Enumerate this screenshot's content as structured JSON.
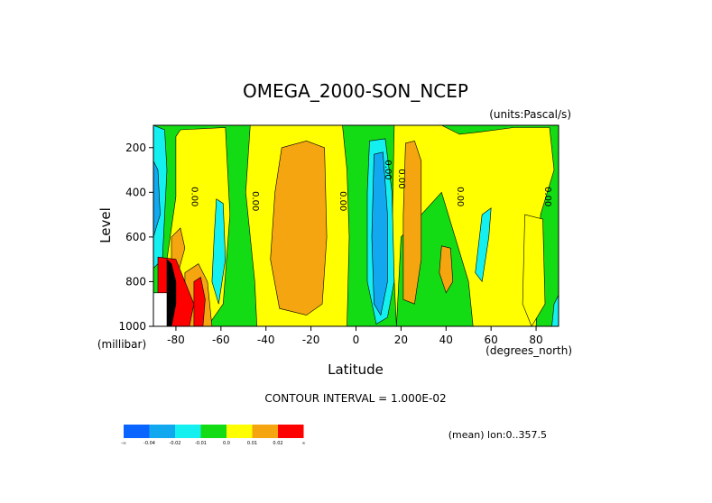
{
  "chart_data": {
    "type": "heatmap",
    "title": "OMEGA_2000-SON_NCEP",
    "units_label": "(units:Pascal/s)",
    "xlabel": "Latitude",
    "ylabel": "Level",
    "x_unit_label": "(degrees_north)",
    "y_unit_label": "(millibar)",
    "xlim": [
      -90,
      90
    ],
    "ylim": [
      1000,
      100
    ],
    "x_ticks": [
      -80,
      -60,
      -40,
      -20,
      0,
      20,
      40,
      60,
      80
    ],
    "y_ticks": [
      200,
      400,
      600,
      800,
      1000
    ],
    "contour_interval_text": "CONTOUR INTERVAL = 1.000E-02",
    "mean_text": "(mean) lon:0..357.5",
    "contour_labels": [
      {
        "lat": -73,
        "level": 420,
        "text": "0.00"
      },
      {
        "lat": -46,
        "level": 440,
        "text": "0.00"
      },
      {
        "lat": -7,
        "level": 440,
        "text": "0.00"
      },
      {
        "lat": 13,
        "level": 300,
        "text": "0.00"
      },
      {
        "lat": 19,
        "level": 340,
        "text": "0.00"
      },
      {
        "lat": 45,
        "level": 420,
        "text": "0.00"
      },
      {
        "lat": 84,
        "level": 420,
        "text": "0.00"
      }
    ],
    "colorbar": {
      "bins": [
        {
          "color": "#0a64ff",
          "label": "-∞"
        },
        {
          "color": "#12a8f0",
          "label": "-0.04"
        },
        {
          "color": "#14f0f0",
          "label": "-0.02"
        },
        {
          "color": "#14dc14",
          "label": "-0.01"
        },
        {
          "color": "#ffff00",
          "label": "0.0"
        },
        {
          "color": "#f5a510",
          "label": "0.01"
        },
        {
          "color": "#ff0000",
          "label": "0.02"
        }
      ],
      "end_label": "∞"
    },
    "regions": [
      {
        "color": "#14dc14",
        "poly": [
          [
            -90,
            100
          ],
          [
            90,
            100
          ],
          [
            90,
            1000
          ],
          [
            -90,
            1000
          ]
        ]
      },
      {
        "color": "#ffff00",
        "poly": [
          [
            -78,
            120
          ],
          [
            -58,
            110
          ],
          [
            -56,
            500
          ],
          [
            -59,
            900
          ],
          [
            -66,
            1000
          ],
          [
            -84,
            1000
          ],
          [
            -84,
            700
          ],
          [
            -80,
            420
          ],
          [
            -80,
            150
          ]
        ]
      },
      {
        "color": "#ffff00",
        "poly": [
          [
            -47,
            100
          ],
          [
            -6,
            100
          ],
          [
            -4,
            300
          ],
          [
            -3,
            600
          ],
          [
            -4,
            1000
          ],
          [
            -44,
            1000
          ],
          [
            -45,
            800
          ],
          [
            -49,
            400
          ]
        ]
      },
      {
        "color": "#ffff00",
        "poly": [
          [
            17,
            100
          ],
          [
            38,
            100
          ],
          [
            46,
            140
          ],
          [
            55,
            130
          ],
          [
            70,
            110
          ],
          [
            86,
            110
          ],
          [
            88,
            300
          ],
          [
            82,
            500
          ],
          [
            80,
            1000
          ],
          [
            52,
            1000
          ],
          [
            50,
            800
          ],
          [
            38,
            400
          ],
          [
            20,
            600
          ],
          [
            18,
            1000
          ],
          [
            16,
            600
          ]
        ]
      },
      {
        "color": "#ffff00",
        "poly": [
          [
            75,
            500
          ],
          [
            83,
            520
          ],
          [
            84,
            900
          ],
          [
            78,
            1000
          ],
          [
            74,
            900
          ]
        ]
      },
      {
        "color": "#f5a510",
        "poly": [
          [
            -33,
            200
          ],
          [
            -22,
            170
          ],
          [
            -14,
            200
          ],
          [
            -13,
            600
          ],
          [
            -15,
            900
          ],
          [
            -22,
            950
          ],
          [
            -34,
            920
          ],
          [
            -38,
            700
          ],
          [
            -36,
            400
          ]
        ]
      },
      {
        "color": "#f5a510",
        "poly": [
          [
            22,
            180
          ],
          [
            26,
            170
          ],
          [
            29,
            260
          ],
          [
            29,
            700
          ],
          [
            26,
            900
          ],
          [
            21,
            880
          ],
          [
            21,
            500
          ]
        ]
      },
      {
        "color": "#f5a510",
        "poly": [
          [
            38,
            640
          ],
          [
            42,
            650
          ],
          [
            43,
            800
          ],
          [
            40,
            850
          ],
          [
            37,
            760
          ]
        ]
      },
      {
        "color": "#f5a510",
        "poly": [
          [
            -82,
            600
          ],
          [
            -78,
            560
          ],
          [
            -76,
            650
          ],
          [
            -79,
            760
          ],
          [
            -82,
            720
          ]
        ]
      },
      {
        "color": "#f5a510",
        "poly": [
          [
            -76,
            760
          ],
          [
            -70,
            720
          ],
          [
            -66,
            800
          ],
          [
            -64,
            1000
          ],
          [
            -74,
            1000
          ],
          [
            -76,
            900
          ]
        ]
      },
      {
        "color": "#14f0f0",
        "poly": [
          [
            -90,
            100
          ],
          [
            -85,
            120
          ],
          [
            -84,
            300
          ],
          [
            -86,
            700
          ],
          [
            -90,
            740
          ]
        ]
      },
      {
        "color": "#14f0f0",
        "poly": [
          [
            6,
            170
          ],
          [
            13,
            160
          ],
          [
            16,
            400
          ],
          [
            17,
            800
          ],
          [
            14,
            960
          ],
          [
            9,
            990
          ],
          [
            5,
            800
          ],
          [
            5,
            400
          ]
        ]
      },
      {
        "color": "#14f0f0",
        "poly": [
          [
            -62,
            430
          ],
          [
            -59,
            450
          ],
          [
            -58,
            700
          ],
          [
            -61,
            900
          ],
          [
            -64,
            800
          ],
          [
            -63,
            600
          ]
        ]
      },
      {
        "color": "#14f0f0",
        "poly": [
          [
            56,
            500
          ],
          [
            60,
            470
          ],
          [
            59,
            600
          ],
          [
            56,
            800
          ],
          [
            53,
            760
          ]
        ]
      },
      {
        "color": "#14f0f0",
        "poly": [
          [
            88,
            900
          ],
          [
            90,
            860
          ],
          [
            90,
            1000
          ],
          [
            87,
            1000
          ]
        ]
      },
      {
        "color": "#12a8f0",
        "poly": [
          [
            8,
            230
          ],
          [
            12,
            220
          ],
          [
            14,
            500
          ],
          [
            14,
            800
          ],
          [
            11,
            950
          ],
          [
            8,
            900
          ],
          [
            7,
            600
          ]
        ]
      },
      {
        "color": "#12a8f0",
        "poly": [
          [
            -90,
            260
          ],
          [
            -88,
            300
          ],
          [
            -87,
            500
          ],
          [
            -90,
            600
          ]
        ]
      },
      {
        "color": "#ff0000",
        "poly": [
          [
            -88,
            690
          ],
          [
            -80,
            700
          ],
          [
            -76,
            800
          ],
          [
            -72,
            900
          ],
          [
            -74,
            1000
          ],
          [
            -88,
            1000
          ]
        ]
      },
      {
        "color": "#ff0000",
        "poly": [
          [
            -72,
            800
          ],
          [
            -69,
            780
          ],
          [
            -67,
            880
          ],
          [
            -68,
            1000
          ],
          [
            -72,
            1000
          ]
        ]
      },
      {
        "color": "#000000",
        "poly": [
          [
            -84,
            700
          ],
          [
            -82,
            720
          ],
          [
            -80,
            800
          ],
          [
            -80,
            900
          ],
          [
            -82,
            1000
          ],
          [
            -84,
            1000
          ]
        ]
      },
      {
        "color": "#ffffff",
        "poly": [
          [
            -90,
            850
          ],
          [
            -84,
            850
          ],
          [
            -84,
            1000
          ],
          [
            -90,
            1000
          ]
        ]
      }
    ]
  }
}
